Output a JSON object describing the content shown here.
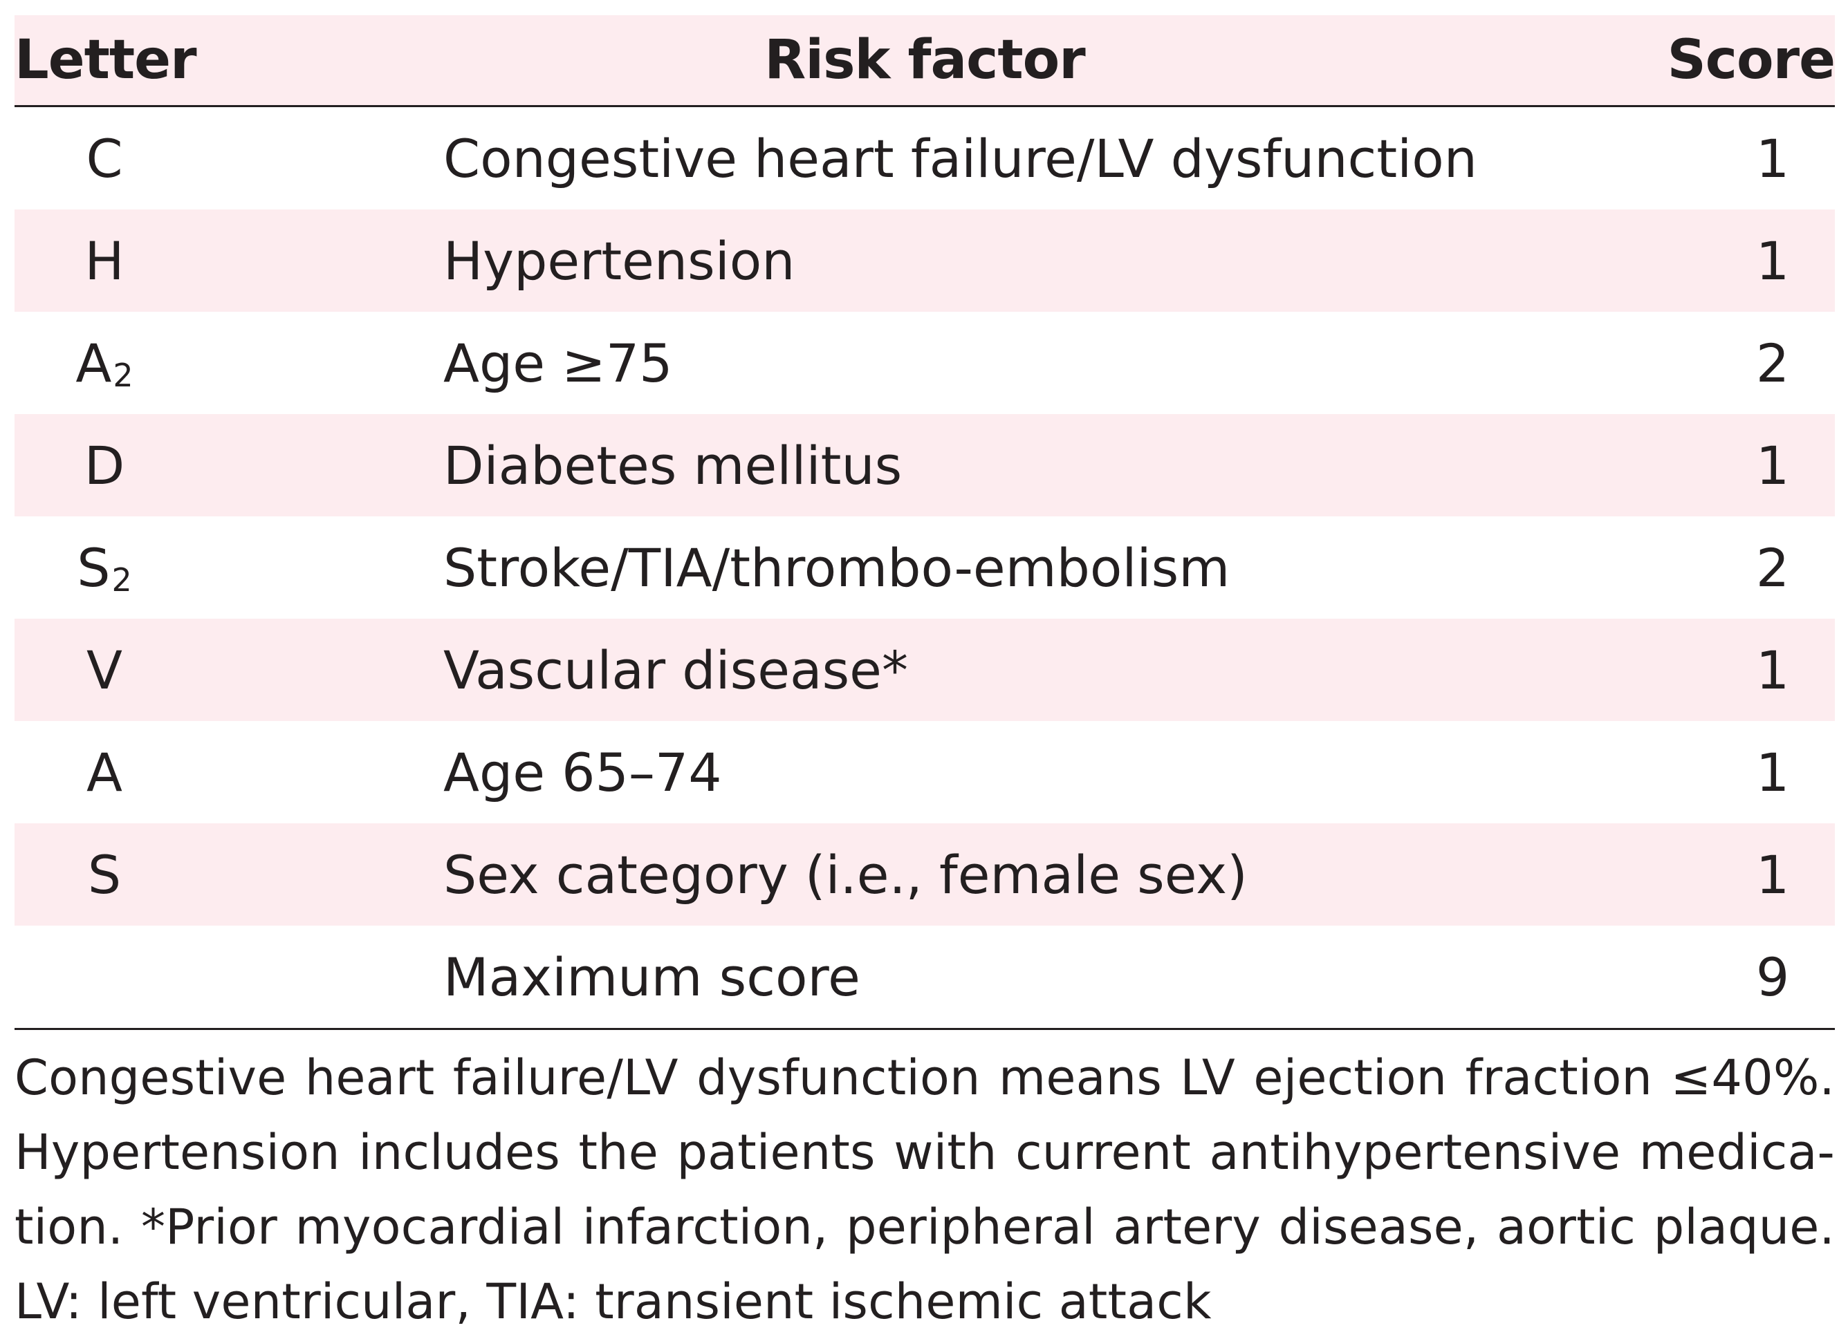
{
  "table": {
    "headers": {
      "letter": "Letter",
      "risk_factor": "Risk factor",
      "score": "Score"
    },
    "rows": [
      {
        "letter": "C",
        "sub": "",
        "factor": "Congestive heart failure/LV dysfunction",
        "score": "1"
      },
      {
        "letter": "H",
        "sub": "",
        "factor": "Hypertension",
        "score": "1"
      },
      {
        "letter": "A",
        "sub": "2",
        "factor": "Age ≥75",
        "score": "2"
      },
      {
        "letter": "D",
        "sub": "",
        "factor": "Diabetes mellitus",
        "score": "1"
      },
      {
        "letter": "S",
        "sub": "2",
        "factor": "Stroke/TIA/thrombo-embolism",
        "score": "2"
      },
      {
        "letter": "V",
        "sub": "",
        "factor": "Vascular disease*",
        "score": "1"
      },
      {
        "letter": "A",
        "sub": "",
        "factor": "Age 65–74",
        "score": "1"
      },
      {
        "letter": "S",
        "sub": "",
        "factor": "Sex category (i.e., female sex)",
        "score": "1"
      },
      {
        "letter": "",
        "sub": "",
        "factor": "Maximum score",
        "score": "9"
      }
    ]
  },
  "footnote": {
    "lines": [
      "Congestive heart failure/LV dysfunction means LV ejection fraction ≤40%.",
      "Hypertension includes the patients with current antihypertensive medica-",
      "tion. *Prior myocardial infarction, peripheral artery disease, aortic plaque.",
      "LV: left ventricular, TIA: transient ischemic attack"
    ]
  },
  "colors": {
    "shade": "#fdecef",
    "text": "#231f20",
    "rule": "#231f20"
  }
}
